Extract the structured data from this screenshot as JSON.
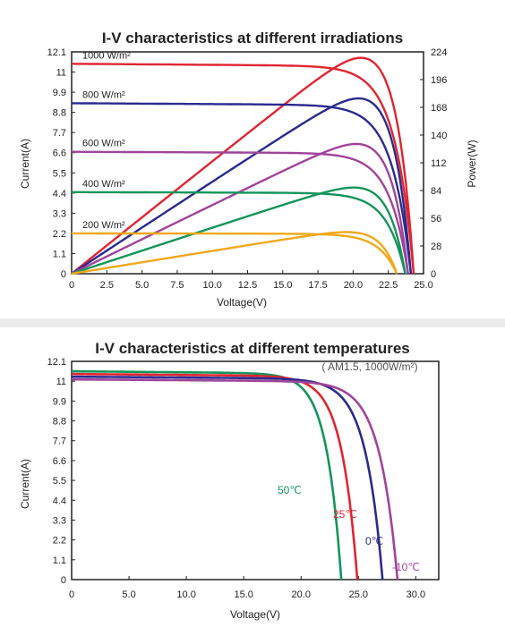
{
  "chart_data": [
    {
      "type": "line",
      "title": "I-V characteristics at different irradiations",
      "xlabel": "Voltage(V)",
      "ylabel": "Current(A)",
      "y2label": "Power(W)",
      "xlim": [
        0,
        25
      ],
      "ylim": [
        0,
        12.1
      ],
      "y2lim": [
        0,
        224
      ],
      "x_ticks": [
        "0",
        "2.5",
        "5.0",
        "7.5",
        "10.0",
        "12.5",
        "15.0",
        "17.5",
        "20.0",
        "22.5",
        "25.0"
      ],
      "y_ticks": [
        "0",
        "1.1",
        "2.2",
        "3.3",
        "4.4",
        "5.5",
        "6.6",
        "7.7",
        "8.8",
        "9.9",
        "11",
        "12.1"
      ],
      "y2_ticks": [
        "0",
        "28",
        "56",
        "84",
        "112",
        "140",
        "168",
        "196",
        "224"
      ],
      "grid": false,
      "series": [
        {
          "name": "1000 W/m²",
          "color": "#e02531",
          "isc": 11.45,
          "voc": 24.3,
          "pmax": 218,
          "vmp": 19.8
        },
        {
          "name": "800 W/m²",
          "color": "#2b2a8f",
          "isc": 9.3,
          "voc": 24.1,
          "pmax": 177,
          "vmp": 19.8
        },
        {
          "name": "600 W/m²",
          "color": "#a0449a",
          "isc": 6.65,
          "voc": 23.9,
          "pmax": 131,
          "vmp": 19.7
        },
        {
          "name": "400 W/m²",
          "color": "#14955a",
          "isc": 4.45,
          "voc": 23.7,
          "pmax": 87,
          "vmp": 19.6
        },
        {
          "name": "200 W/m²",
          "color": "#f0a81b",
          "isc": 2.2,
          "voc": 23.1,
          "pmax": 42,
          "vmp": 19.5
        }
      ]
    },
    {
      "type": "line",
      "title": "I-V characteristics at different temperatures",
      "subtitle": "( AM1.5,  1000W/m²)",
      "xlabel": "Voltage(V)",
      "ylabel": "Current(A)",
      "xlim": [
        0,
        32
      ],
      "ylim": [
        0,
        12.1
      ],
      "x_ticks": [
        "0",
        "5.0",
        "10.0",
        "15.0",
        "20.0",
        "25.0",
        "30.0"
      ],
      "y_ticks": [
        "0",
        "1.1",
        "2.2",
        "3.3",
        "4.4",
        "5.5",
        "6.6",
        "7.7",
        "8.8",
        "9.9",
        "11",
        "12.1"
      ],
      "grid": false,
      "series": [
        {
          "name": "50℃",
          "color": "#14955a",
          "isc": 11.55,
          "voc": 23.5
        },
        {
          "name": "25℃",
          "color": "#e02531",
          "isc": 11.4,
          "voc": 24.9
        },
        {
          "name": "0℃",
          "color": "#2b2a8f",
          "isc": 11.25,
          "voc": 27.1
        },
        {
          "name": "-10℃",
          "color": "#a0449a",
          "isc": 11.1,
          "voc": 28.4
        }
      ]
    }
  ]
}
